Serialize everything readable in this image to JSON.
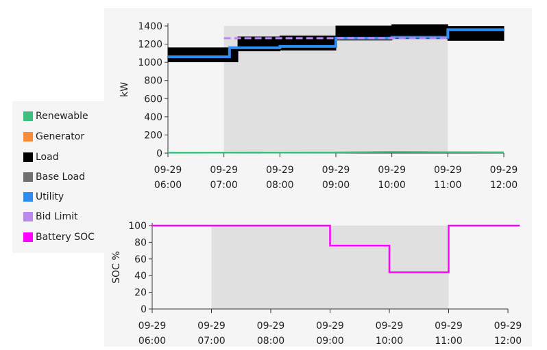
{
  "legend": [
    {
      "label": "Renewable",
      "color": "#3cbf7f"
    },
    {
      "label": "Generator",
      "color": "#f78c3a"
    },
    {
      "label": "Load",
      "color": "#000000"
    },
    {
      "label": "Base Load",
      "color": "#707070"
    },
    {
      "label": "Utility",
      "color": "#2f8cf0"
    },
    {
      "label": "Bid Limit",
      "color": "#bb88ee"
    },
    {
      "label": "Battery SOC",
      "color": "#ff00ff"
    }
  ],
  "chart_data": [
    {
      "type": "line",
      "ylabel": "kW",
      "xlabel": "",
      "ylim": [
        0,
        1400
      ],
      "yticks": [
        0,
        200,
        400,
        600,
        800,
        1000,
        1200,
        1400
      ],
      "xticks": [
        {
          "date": "09-29",
          "time": "06:00"
        },
        {
          "date": "09-29",
          "time": "07:00"
        },
        {
          "date": "09-29",
          "time": "08:00"
        },
        {
          "date": "09-29",
          "time": "09:00"
        },
        {
          "date": "09-29",
          "time": "10:00"
        },
        {
          "date": "09-29",
          "time": "11:00"
        },
        {
          "date": "09-29",
          "time": "12:00"
        }
      ],
      "xlim_hours": [
        6,
        12
      ],
      "shaded_region_hours": [
        7,
        11
      ],
      "series": [
        {
          "name": "Load",
          "step": true,
          "band": [
            60,
            95
          ],
          "x_hours": [
            6,
            7,
            7.25,
            8,
            9,
            10,
            11,
            12
          ],
          "y": [
            1065,
            1065,
            1185,
            1195,
            1305,
            1320,
            1300,
            1300
          ]
        },
        {
          "name": "Utility",
          "step": true,
          "x_hours": [
            6,
            7,
            7.1,
            8,
            9,
            10,
            11,
            12
          ],
          "y": [
            1060,
            1060,
            1160,
            1175,
            1265,
            1275,
            1360,
            1360
          ]
        },
        {
          "name": "Bid Limit",
          "dashed": true,
          "x_hours": [
            7,
            11
          ],
          "y": [
            1265,
            1265
          ]
        },
        {
          "name": "Renewable",
          "x_hours": [
            6,
            9,
            10,
            12
          ],
          "y": [
            5,
            7,
            12,
            8
          ]
        }
      ]
    },
    {
      "type": "line",
      "ylabel": "SOC %",
      "xlabel": "",
      "ylim": [
        0,
        100
      ],
      "yticks": [
        0,
        20,
        40,
        60,
        80,
        100
      ],
      "xticks": [
        {
          "date": "09-29",
          "time": "06:00"
        },
        {
          "date": "09-29",
          "time": "07:00"
        },
        {
          "date": "09-29",
          "time": "08:00"
        },
        {
          "date": "09-29",
          "time": "09:00"
        },
        {
          "date": "09-29",
          "time": "10:00"
        },
        {
          "date": "09-29",
          "time": "11:00"
        },
        {
          "date": "09-29",
          "time": "12:00"
        }
      ],
      "xlim_hours": [
        6,
        12
      ],
      "shaded_region_hours": [
        7,
        11
      ],
      "series": [
        {
          "name": "Battery SOC",
          "step": true,
          "x_hours": [
            6,
            9,
            10,
            11,
            12.2
          ],
          "y": [
            100,
            76,
            44,
            100,
            100
          ]
        }
      ]
    }
  ]
}
